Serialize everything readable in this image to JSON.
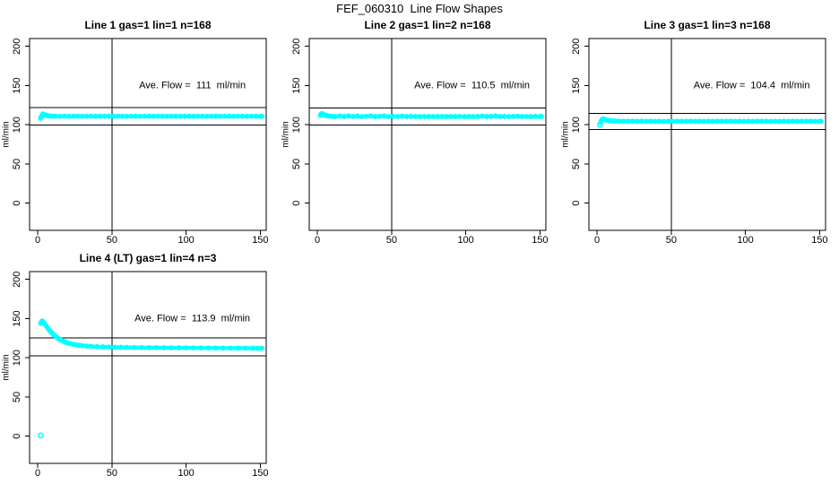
{
  "main_title": "FEF_060310  Line Flow Shapes",
  "colors": {
    "data_series": "#00FFFF",
    "axis": "#000000",
    "background": "#FFFFFF",
    "text": "#000000"
  },
  "chart_data": {
    "type": "scatter",
    "title": "FEF_060310  Line Flow Shapes",
    "layout": "4 panels in a 2-row by 3-column grid (bottom-middle and bottom-right cells empty)",
    "shared": {
      "xlabel": "",
      "ylabel": "ml/min",
      "xticks": [
        0,
        50,
        100,
        150
      ],
      "yticks": [
        0,
        50,
        100,
        150,
        200
      ],
      "xlim": [
        -5.5,
        154
      ],
      "ylim": [
        -34.6,
        210
      ],
      "vline_x": 50,
      "hline_rule": "horizontal reference lines at average flow ±10%",
      "marker": "open circle",
      "grid": false,
      "legend": "none"
    },
    "panels": [
      {
        "title": "Line 1 gas=1 lin=1 n=168",
        "annotation": "Ave. Flow =  111  ml/min",
        "ave_flow": 111,
        "n": 168,
        "gas": 1,
        "lin": 1,
        "hlines": [
          99.9,
          122.1
        ],
        "outliers": [],
        "points": [
          [
            2,
            108.5
          ],
          [
            2.5,
            110.5
          ],
          [
            3,
            112.5
          ],
          [
            3.5,
            113.8
          ],
          [
            4,
            113.5
          ],
          [
            4.5,
            113
          ],
          [
            5,
            112.5
          ],
          [
            6,
            112
          ],
          [
            7,
            111.6
          ],
          [
            8,
            111.3
          ],
          [
            9,
            111.1
          ],
          [
            10,
            111
          ],
          [
            12,
            110.9
          ],
          [
            15,
            110.8
          ],
          [
            18,
            111
          ],
          [
            21,
            110.7
          ],
          [
            24,
            110.9
          ],
          [
            27,
            111
          ],
          [
            30,
            110.8
          ],
          [
            33,
            110.9
          ],
          [
            36,
            111
          ],
          [
            39,
            110.8
          ],
          [
            42,
            110.9
          ],
          [
            45,
            111
          ],
          [
            48,
            110.9
          ],
          [
            51,
            110.8
          ],
          [
            54,
            111
          ],
          [
            57,
            110.9
          ],
          [
            60,
            110.8
          ],
          [
            63,
            111
          ],
          [
            66,
            110.9
          ],
          [
            69,
            110.8
          ],
          [
            72,
            111
          ],
          [
            75,
            110.9
          ],
          [
            78,
            110.8
          ],
          [
            81,
            111
          ],
          [
            84,
            110.9
          ],
          [
            87,
            110.8
          ],
          [
            90,
            111
          ],
          [
            93,
            110.9
          ],
          [
            96,
            110.8
          ],
          [
            99,
            111
          ],
          [
            102,
            110.9
          ],
          [
            105,
            110.8
          ],
          [
            108,
            111
          ],
          [
            111,
            110.9
          ],
          [
            114,
            110.8
          ],
          [
            117,
            111
          ],
          [
            120,
            110.9
          ],
          [
            123,
            110.8
          ],
          [
            126,
            111
          ],
          [
            129,
            110.9
          ],
          [
            132,
            110.8
          ],
          [
            135,
            111
          ],
          [
            138,
            110.9
          ],
          [
            141,
            110.8
          ],
          [
            144,
            111
          ],
          [
            147,
            110.9
          ],
          [
            150,
            110.8
          ],
          [
            151,
            110.9
          ]
        ]
      },
      {
        "title": "Line 2 gas=1 lin=2 n=168",
        "annotation": "Ave. Flow =  110.5  ml/min",
        "ave_flow": 110.5,
        "n": 168,
        "gas": 1,
        "lin": 2,
        "hlines": [
          99.45,
          121.55
        ],
        "outliers": [],
        "points": [
          [
            2,
            112
          ],
          [
            2.5,
            113.5
          ],
          [
            3,
            114.2
          ],
          [
            3.5,
            113.8
          ],
          [
            4,
            113.2
          ],
          [
            5,
            112.4
          ],
          [
            6,
            111.8
          ],
          [
            7,
            111.4
          ],
          [
            8,
            111.1
          ],
          [
            10,
            110.8
          ],
          [
            12,
            110.6
          ],
          [
            15,
            111.2
          ],
          [
            18,
            110.5
          ],
          [
            21,
            111.4
          ],
          [
            24,
            110.6
          ],
          [
            27,
            111.2
          ],
          [
            30,
            110.5
          ],
          [
            33,
            110.8
          ],
          [
            36,
            111.3
          ],
          [
            39,
            110.5
          ],
          [
            42,
            110.7
          ],
          [
            45,
            111.2
          ],
          [
            48,
            110.5
          ],
          [
            51,
            110.8
          ],
          [
            54,
            110.6
          ],
          [
            57,
            111.1
          ],
          [
            60,
            110.5
          ],
          [
            63,
            110.7
          ],
          [
            66,
            110.6
          ],
          [
            69,
            110.5
          ],
          [
            72,
            110.6
          ],
          [
            75,
            110.5
          ],
          [
            78,
            110.6
          ],
          [
            81,
            110.5
          ],
          [
            84,
            110.6
          ],
          [
            87,
            110.5
          ],
          [
            90,
            110.6
          ],
          [
            93,
            110.5
          ],
          [
            96,
            110.7
          ],
          [
            99,
            110.5
          ],
          [
            102,
            110.6
          ],
          [
            105,
            110.5
          ],
          [
            108,
            110.6
          ],
          [
            111,
            111.1
          ],
          [
            114,
            110.5
          ],
          [
            117,
            110.8
          ],
          [
            120,
            111.2
          ],
          [
            123,
            110.5
          ],
          [
            126,
            110.7
          ],
          [
            129,
            110.5
          ],
          [
            132,
            110.6
          ],
          [
            135,
            111
          ],
          [
            138,
            110.5
          ],
          [
            141,
            110.6
          ],
          [
            144,
            110.5
          ],
          [
            147,
            110.7
          ],
          [
            150,
            110.5
          ],
          [
            151,
            110.6
          ]
        ]
      },
      {
        "title": "Line 3 gas=1 lin=3 n=168",
        "annotation": "Ave. Flow =  104.4  ml/min",
        "ave_flow": 104.4,
        "n": 168,
        "gas": 1,
        "lin": 3,
        "hlines": [
          93.96,
          114.84
        ],
        "outliers": [
          [
            2,
            100
          ]
        ],
        "points": [
          [
            2.5,
            103
          ],
          [
            3,
            105.5
          ],
          [
            3.5,
            107
          ],
          [
            4,
            107.6
          ],
          [
            4.5,
            107.2
          ],
          [
            5,
            106.8
          ],
          [
            6,
            106.2
          ],
          [
            7,
            105.8
          ],
          [
            8,
            105.4
          ],
          [
            9,
            105.2
          ],
          [
            10,
            105
          ],
          [
            12,
            104.8
          ],
          [
            15,
            104.7
          ],
          [
            18,
            104.6
          ],
          [
            21,
            104.5
          ],
          [
            24,
            104.6
          ],
          [
            27,
            104.4
          ],
          [
            30,
            104.5
          ],
          [
            33,
            104.4
          ],
          [
            36,
            104.5
          ],
          [
            39,
            104.4
          ],
          [
            42,
            104.5
          ],
          [
            45,
            104.4
          ],
          [
            48,
            104.5
          ],
          [
            51,
            104.4
          ],
          [
            54,
            104.5
          ],
          [
            57,
            104.4
          ],
          [
            60,
            104.5
          ],
          [
            63,
            104.6
          ],
          [
            66,
            104.4
          ],
          [
            69,
            104.5
          ],
          [
            72,
            104.4
          ],
          [
            75,
            104.5
          ],
          [
            78,
            104.4
          ],
          [
            81,
            104.5
          ],
          [
            84,
            104.4
          ],
          [
            87,
            104.5
          ],
          [
            90,
            104.6
          ],
          [
            93,
            104.4
          ],
          [
            96,
            104.5
          ],
          [
            99,
            104.4
          ],
          [
            102,
            104.5
          ],
          [
            105,
            104.4
          ],
          [
            108,
            104.5
          ],
          [
            111,
            104.4
          ],
          [
            114,
            104.5
          ],
          [
            117,
            104.4
          ],
          [
            120,
            104.5
          ],
          [
            123,
            104.4
          ],
          [
            126,
            104.5
          ],
          [
            129,
            104.4
          ],
          [
            132,
            104.5
          ],
          [
            135,
            104.4
          ],
          [
            138,
            104.5
          ],
          [
            141,
            104.4
          ],
          [
            144,
            104.5
          ],
          [
            147,
            104.4
          ],
          [
            150,
            104.5
          ],
          [
            151,
            104.4
          ]
        ]
      },
      {
        "title": "Line 4 (LT) gas=1 lin=4 n=3",
        "annotation": "Ave. Flow =  113.9  ml/min",
        "ave_flow": 113.9,
        "n": 3,
        "gas": 1,
        "lin": 4,
        "hlines": [
          102.51,
          125.29
        ],
        "outliers": [
          [
            2,
            1
          ]
        ],
        "points": [
          [
            2,
            144
          ],
          [
            2.5,
            146
          ],
          [
            3,
            147
          ],
          [
            4,
            145
          ],
          [
            5,
            143
          ],
          [
            6,
            140
          ],
          [
            7,
            137.5
          ],
          [
            8,
            135
          ],
          [
            9,
            133
          ],
          [
            10,
            131
          ],
          [
            11,
            129
          ],
          [
            12,
            127.5
          ],
          [
            13,
            126
          ],
          [
            14,
            124.5
          ],
          [
            15,
            123.5
          ],
          [
            16,
            122.5
          ],
          [
            17,
            121.5
          ],
          [
            18,
            120.5
          ],
          [
            19,
            119.8
          ],
          [
            20,
            119
          ],
          [
            22,
            118
          ],
          [
            24,
            117.2
          ],
          [
            26,
            116.5
          ],
          [
            28,
            116
          ],
          [
            30,
            115.5
          ],
          [
            33,
            115
          ],
          [
            36,
            114.6
          ],
          [
            40,
            114.2
          ],
          [
            44,
            113.9
          ],
          [
            48,
            113.7
          ],
          [
            52,
            113.5
          ],
          [
            56,
            113.4
          ],
          [
            60,
            113.3
          ],
          [
            65,
            113.2
          ],
          [
            70,
            113.1
          ],
          [
            75,
            113
          ],
          [
            80,
            113
          ],
          [
            85,
            112.9
          ],
          [
            90,
            112.8
          ],
          [
            95,
            112.8
          ],
          [
            100,
            112.7
          ],
          [
            105,
            112.7
          ],
          [
            110,
            112.6
          ],
          [
            115,
            112.6
          ],
          [
            120,
            112.5
          ],
          [
            125,
            112.5
          ],
          [
            130,
            112.4
          ],
          [
            135,
            112.4
          ],
          [
            140,
            112.3
          ],
          [
            145,
            112.3
          ],
          [
            148,
            112.2
          ],
          [
            151,
            112.2
          ]
        ]
      }
    ]
  }
}
